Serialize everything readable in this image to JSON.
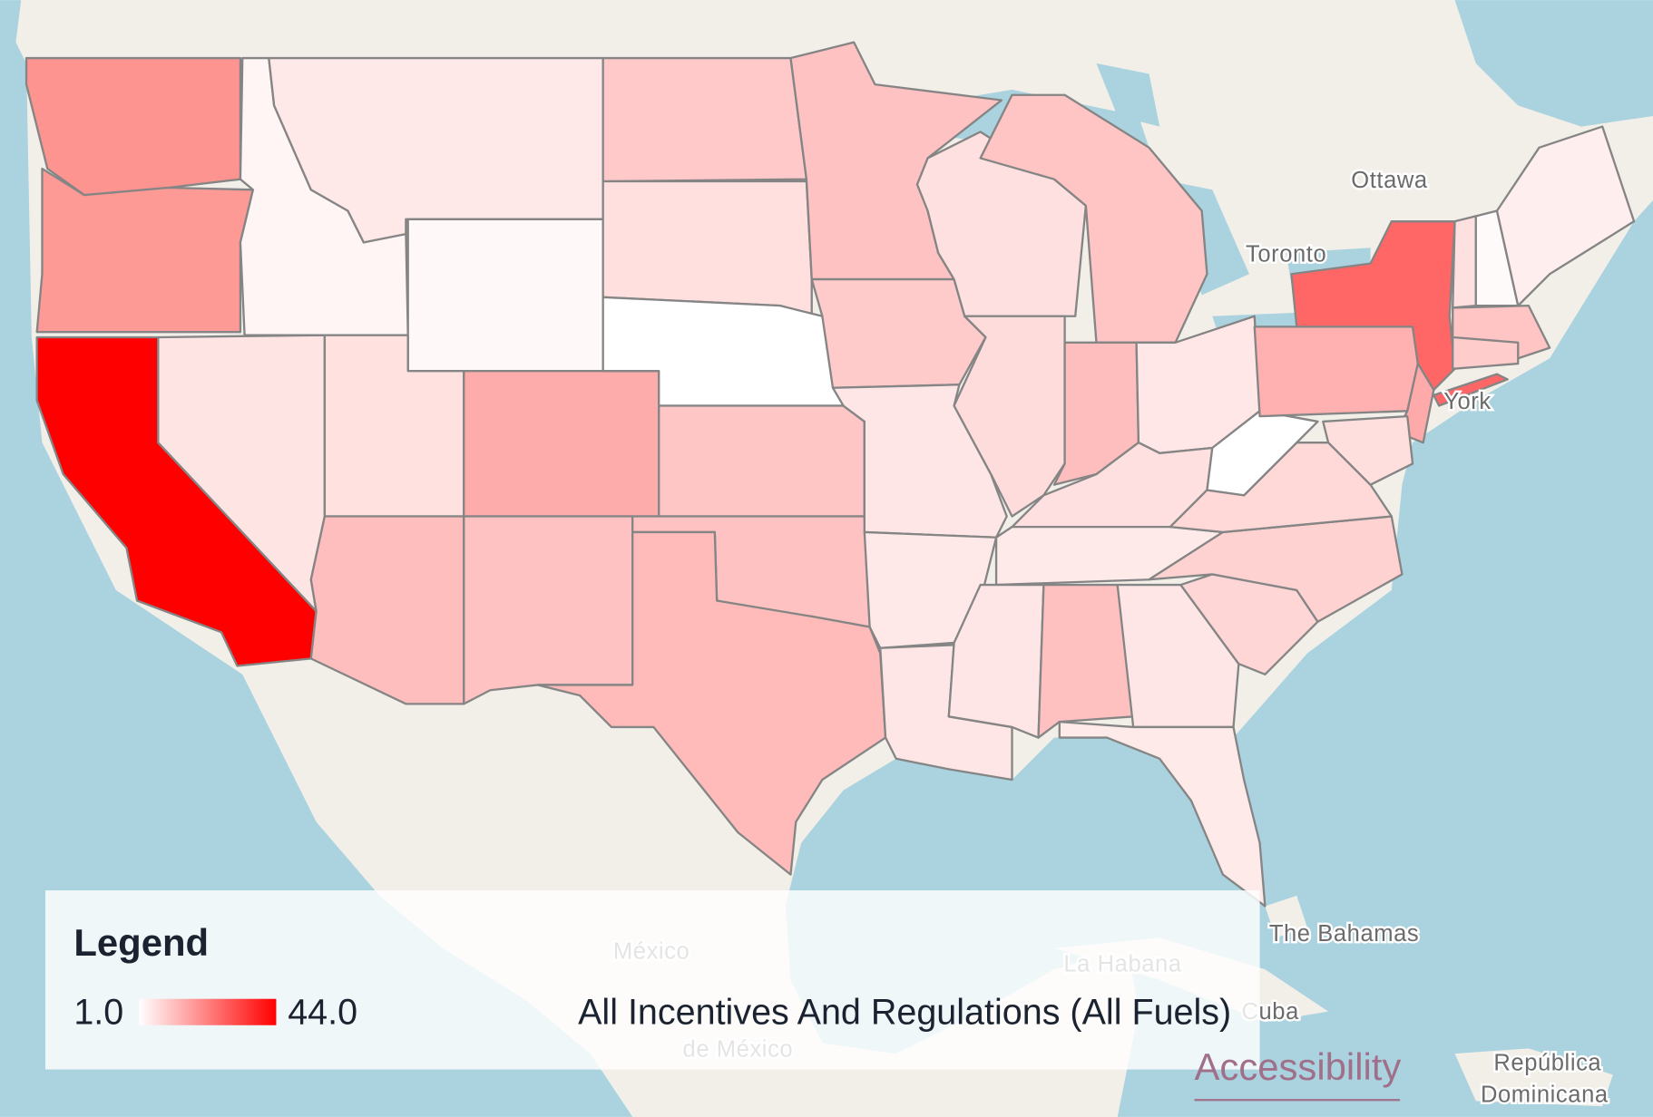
{
  "legend": {
    "title": "Legend",
    "min": "1.0",
    "max": "44.0",
    "layer": "All Incentives And Regulations (All Fuels)"
  },
  "accessibility_link": "Accessibility",
  "map_labels": [
    "Ottawa",
    "Toronto",
    "York",
    "The Bahamas",
    "México",
    "La Habana",
    "Cuba",
    "de México",
    "República",
    "Dominicana"
  ]
}
